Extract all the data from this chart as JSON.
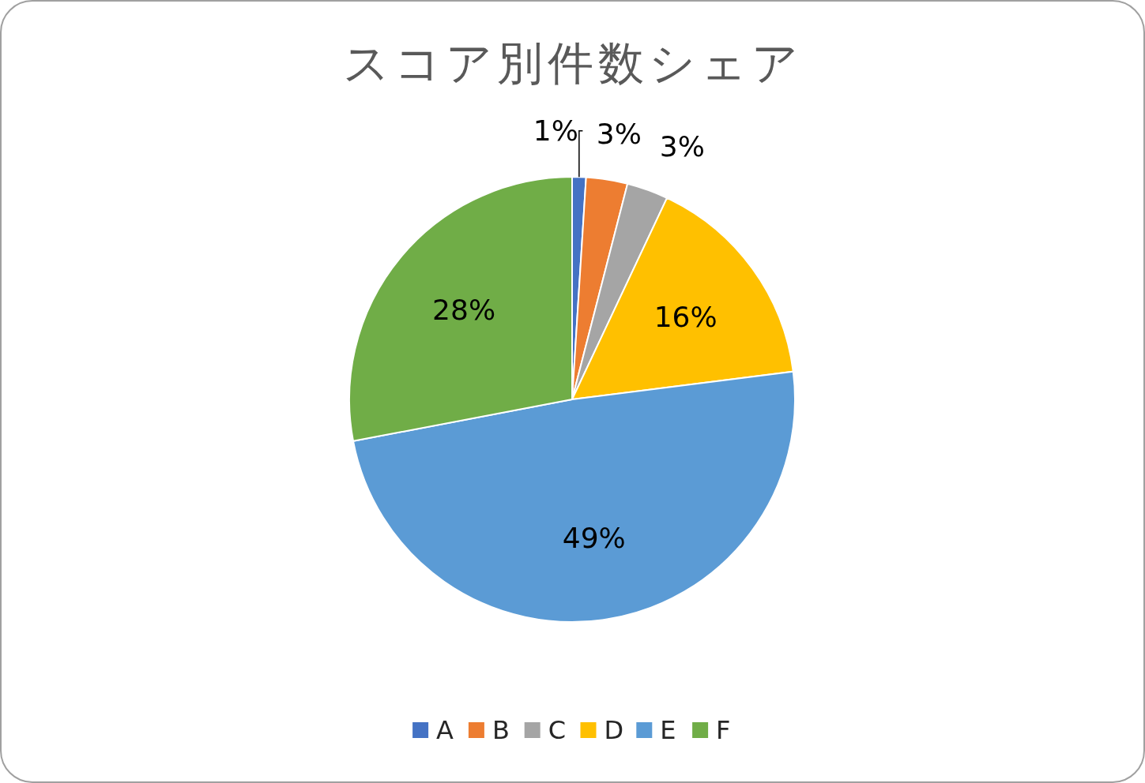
{
  "chart_data": {
    "type": "pie",
    "title": "スコア別件数シェア",
    "categories": [
      "A",
      "B",
      "C",
      "D",
      "E",
      "F"
    ],
    "values": [
      1,
      3,
      3,
      16,
      49,
      28
    ],
    "colors": [
      "#4472c4",
      "#ed7d31",
      "#a5a5a5",
      "#ffc000",
      "#5b9bd5",
      "#70ad47"
    ],
    "value_labels": [
      "1%",
      "3%",
      "3%",
      "16%",
      "49%",
      "28%"
    ],
    "legend": "bottom"
  }
}
